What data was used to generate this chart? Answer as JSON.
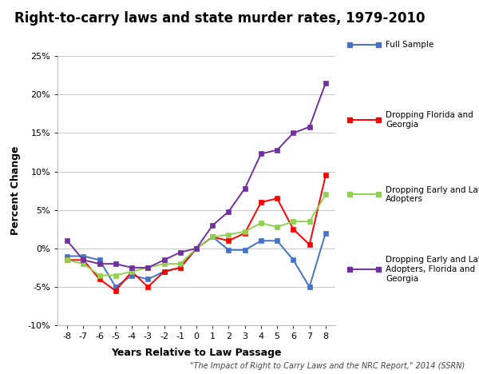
{
  "title": "Right-to-carry laws and state murder rates, 1979-2010",
  "xlabel": "Years Relative to Law Passage",
  "ylabel": "Percent Change",
  "footnote": "\"The Impact of Right to Carry Laws and the NRC Report,\" 2014 (SSRN)",
  "x": [
    -8,
    -7,
    -6,
    -5,
    -4,
    -3,
    -2,
    -1,
    0,
    1,
    2,
    3,
    4,
    5,
    6,
    7,
    8
  ],
  "full_sample": [
    -1.0,
    -1.0,
    -1.5,
    -5.0,
    -3.5,
    -4.0,
    -3.0,
    -2.5,
    0.0,
    1.5,
    -0.2,
    -0.2,
    1.0,
    1.0,
    -1.5,
    -5.0,
    2.0
  ],
  "drop_fl_ga": [
    -1.5,
    -1.5,
    -4.0,
    -5.5,
    -3.0,
    -5.0,
    -3.0,
    -2.5,
    0.0,
    1.5,
    1.0,
    2.0,
    6.0,
    6.5,
    2.5,
    0.5,
    9.5
  ],
  "drop_early_late": [
    -1.5,
    -2.0,
    -3.5,
    -3.5,
    -3.0,
    -2.5,
    -2.0,
    -2.0,
    0.0,
    1.5,
    1.8,
    2.2,
    3.3,
    2.8,
    3.5,
    3.5,
    7.0
  ],
  "drop_early_late_fl_ga": [
    1.0,
    -1.5,
    -2.0,
    -2.0,
    -2.5,
    -2.5,
    -1.5,
    -0.5,
    0.0,
    3.0,
    4.8,
    7.8,
    12.3,
    12.8,
    15.0,
    15.8,
    21.5
  ],
  "colors": {
    "full_sample": "#4472C4",
    "drop_fl_ga": "#FF0000",
    "drop_early_late": "#92D050",
    "drop_early_late_fl_ga": "#7030A0"
  },
  "legend_labels": [
    "Full Sample",
    "Dropping Florida and\nGeorgia",
    "Dropping Early and Late\nAdopters",
    "Dropping Early and Late\nAdopters, Florida and\nGeorgia"
  ],
  "ylim": [
    -10,
    25
  ],
  "yticks": [
    -10,
    -5,
    0,
    5,
    10,
    15,
    20,
    25
  ],
  "background_color": "#ffffff",
  "grid_color": "#c8c8c8"
}
